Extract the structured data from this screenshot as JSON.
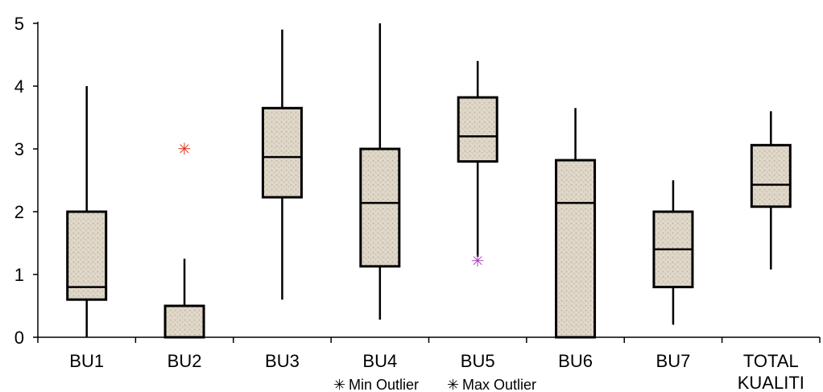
{
  "chart_data": {
    "type": "box",
    "categories": [
      "BU1",
      "BU2",
      "BU3",
      "BU4",
      "BU5",
      "BU6",
      "BU7",
      "TOTAL KUALITI"
    ],
    "boxes": [
      {
        "category": "BU1",
        "min": 0,
        "q1": 0.6,
        "median": 0.8,
        "q3": 2.0,
        "max": 4.0
      },
      {
        "category": "BU2",
        "min": 0,
        "q1": 0,
        "median": 0,
        "q3": 0.5,
        "max": 1.25,
        "max_outlier": 3.0
      },
      {
        "category": "BU3",
        "min": 0.6,
        "q1": 2.23,
        "median": 2.87,
        "q3": 3.65,
        "max": 4.9
      },
      {
        "category": "BU4",
        "min": 0.28,
        "q1": 1.13,
        "median": 2.14,
        "q3": 3.0,
        "max": 5.0
      },
      {
        "category": "BU5",
        "min": 1.28,
        "q1": 2.8,
        "median": 3.2,
        "q3": 3.82,
        "max": 4.4,
        "min_outlier": 1.22
      },
      {
        "category": "BU6",
        "min": 0,
        "q1": 0,
        "median": 2.14,
        "q3": 2.82,
        "max": 3.65
      },
      {
        "category": "BU7",
        "min": 0.2,
        "q1": 0.8,
        "median": 1.4,
        "q3": 2.0,
        "max": 2.5
      },
      {
        "category": "TOTAL KUALITI",
        "min": 1.08,
        "q1": 2.08,
        "median": 2.43,
        "q3": 3.06,
        "max": 3.6
      }
    ],
    "category_labels": [
      [
        "BU1"
      ],
      [
        "BU2"
      ],
      [
        "BU3"
      ],
      [
        "BU4"
      ],
      [
        "BU5"
      ],
      [
        "BU6"
      ],
      [
        "BU7"
      ],
      [
        "TOTAL",
        "KUALITI"
      ]
    ],
    "ylim": [
      0,
      5
    ],
    "yticks": [
      "0",
      "1",
      "2",
      "3",
      "4",
      "5"
    ],
    "grid": false,
    "legend": {
      "placement": "bottom",
      "min_outlier": "Min Outlier",
      "max_outlier": "Max Outlier",
      "min_outlier_marker": "✳",
      "max_outlier_marker": "✳"
    },
    "colors": {
      "box_fill": "#d9d0c0",
      "min_outlier": "#b040c0",
      "max_outlier": "#e03020"
    }
  }
}
